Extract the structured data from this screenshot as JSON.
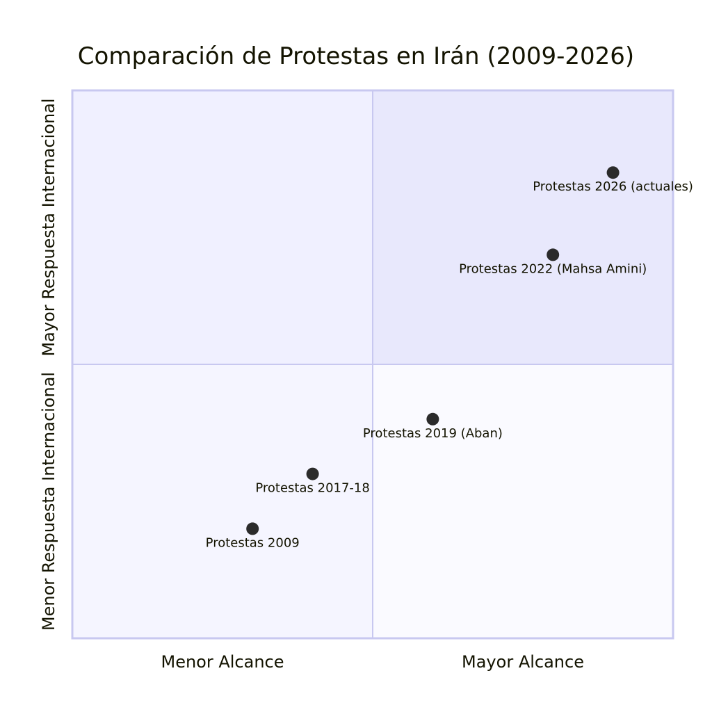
{
  "chart_data": {
    "type": "scatter",
    "subtype": "quadrant",
    "title": "Comparación de Protestas en Irán (2009-2026)",
    "x_axis": {
      "left": "Menor Alcance",
      "right": "Mayor Alcance"
    },
    "y_axis": {
      "bottom": "Menor Respuesta Internacional",
      "top": "Mayor Respuesta Internacional"
    },
    "xlim": [
      0,
      1
    ],
    "ylim": [
      0,
      1
    ],
    "points": [
      {
        "label": "Protestas 2026 (actuales)",
        "x": 0.9,
        "y": 0.85
      },
      {
        "label": "Protestas 2022 (Mahsa Amini)",
        "x": 0.8,
        "y": 0.7
      },
      {
        "label": "Protestas 2019 (Aban)",
        "x": 0.6,
        "y": 0.4
      },
      {
        "label": "Protestas 2017-18",
        "x": 0.4,
        "y": 0.3
      },
      {
        "label": "Protestas 2009",
        "x": 0.3,
        "y": 0.2
      }
    ],
    "colors": {
      "q1": "#e8e8fc",
      "q2": "#f0f0ff",
      "q3": "#f5f5ff",
      "q4": "#fafaff",
      "border": "#c8c8f0",
      "point": "#2b2b2b",
      "text": "#131300"
    }
  }
}
